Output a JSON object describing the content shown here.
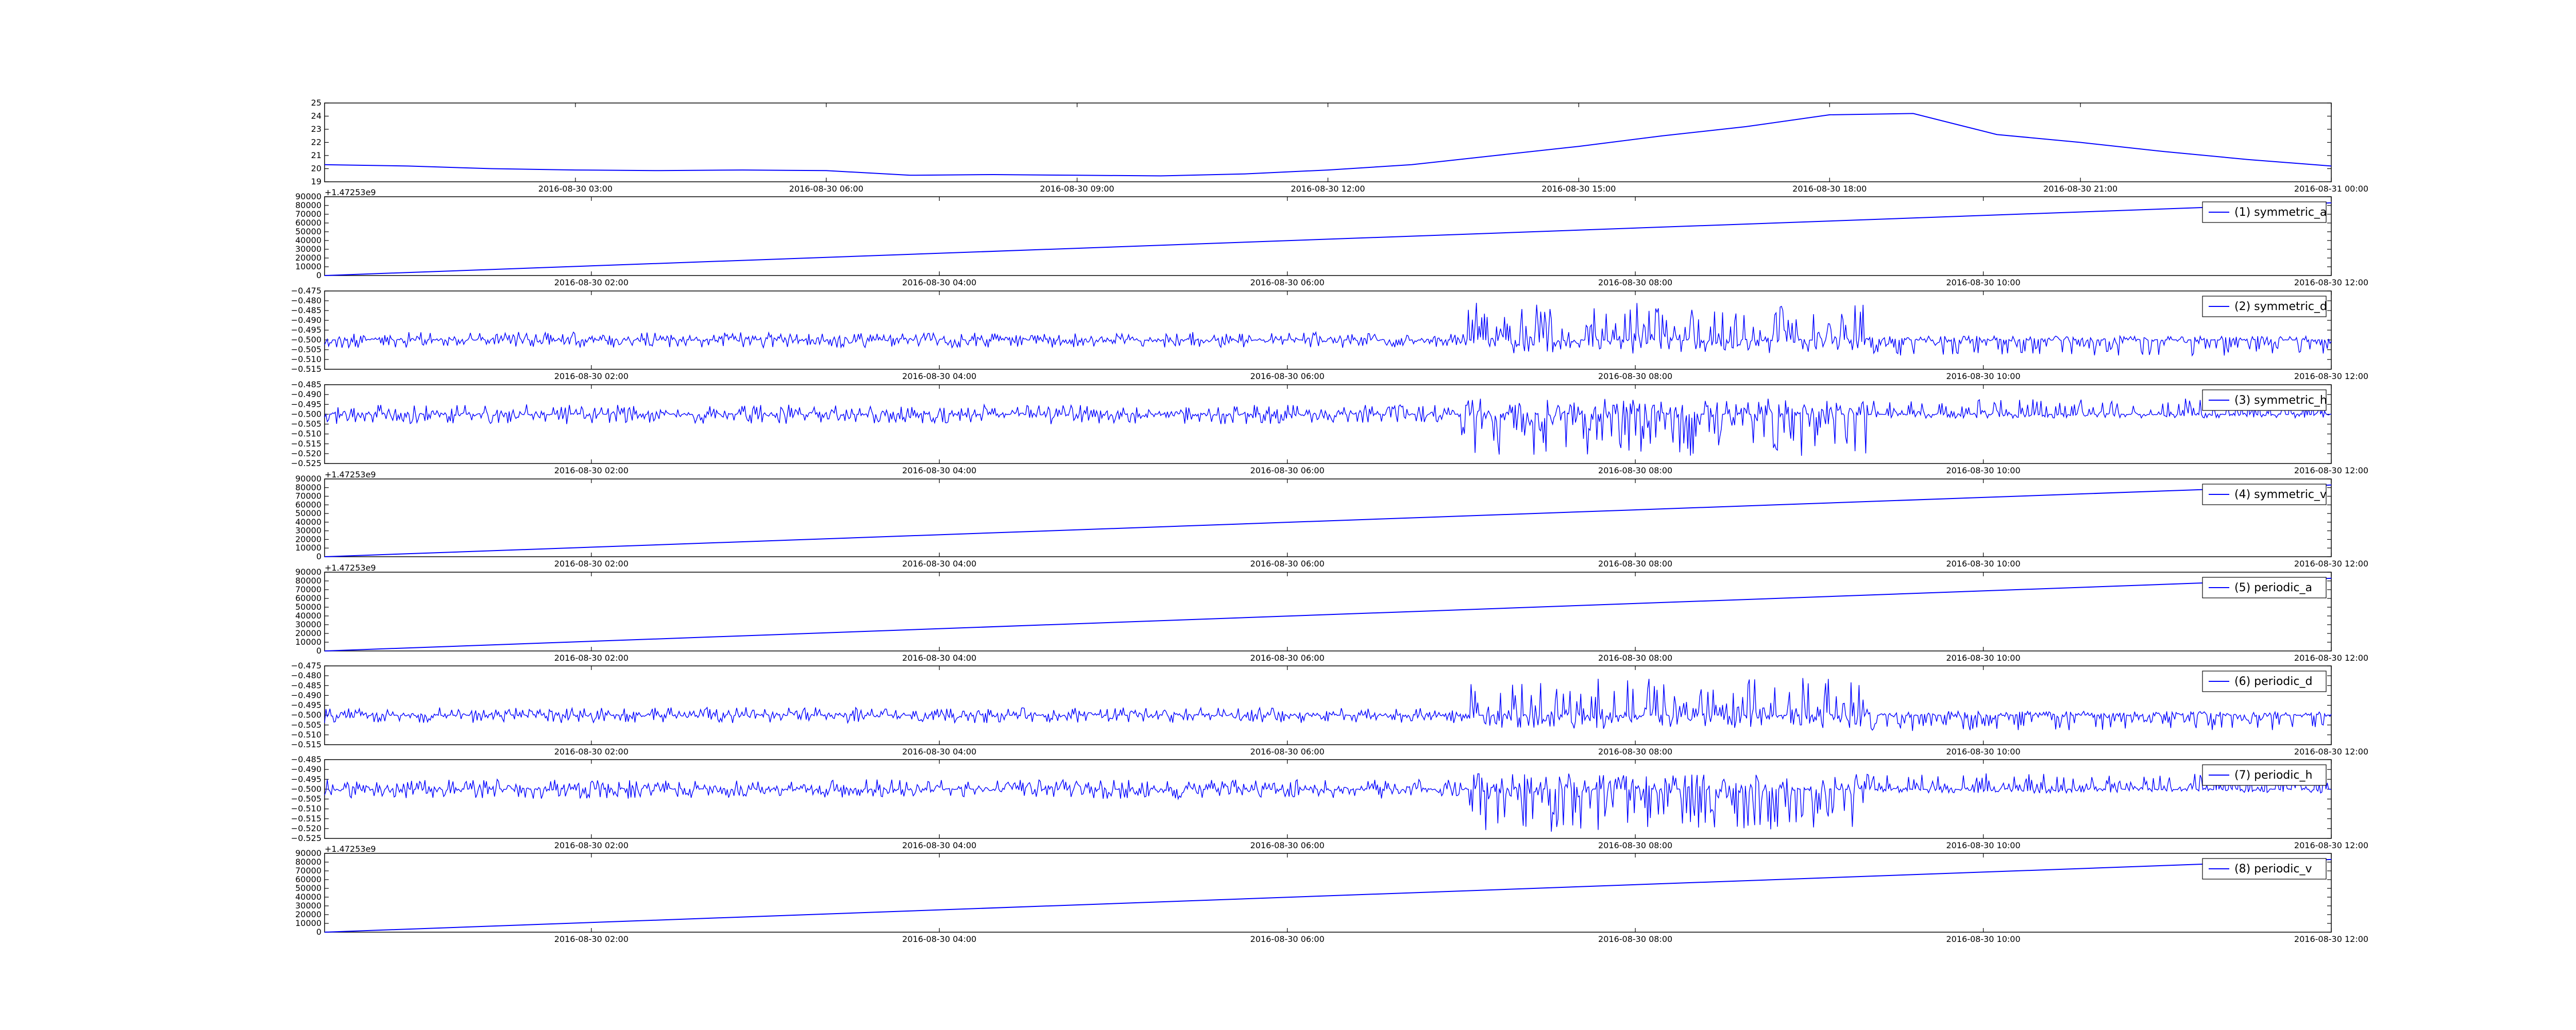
{
  "chart_data": [
    {
      "type": "line",
      "title": "",
      "xlabel": "",
      "ylabel": "",
      "x_tick_labels": [
        "2016-08-30 03:00",
        "2016-08-30 06:00",
        "2016-08-30 09:00",
        "2016-08-30 12:00",
        "2016-08-30 15:00",
        "2016-08-30 18:00",
        "2016-08-30 21:00",
        "2016-08-31 00:00"
      ],
      "x_range": [
        "2016-08-30 00:00",
        "2016-08-31 00:00"
      ],
      "ylim": [
        19,
        25
      ],
      "y_ticks": [
        "19",
        "20",
        "21",
        "22",
        "23",
        "24",
        "25"
      ],
      "grid": false,
      "series": [
        {
          "color": "#0000ff",
          "x": [
            "2016-08-30 00:00",
            "2016-08-30 01:00",
            "2016-08-30 02:00",
            "2016-08-30 03:00",
            "2016-08-30 04:00",
            "2016-08-30 05:00",
            "2016-08-30 06:00",
            "2016-08-30 07:00",
            "2016-08-30 08:00",
            "2016-08-30 09:00",
            "2016-08-30 10:00",
            "2016-08-30 11:00",
            "2016-08-30 12:00",
            "2016-08-30 13:00",
            "2016-08-30 14:00",
            "2016-08-30 15:00",
            "2016-08-30 16:00",
            "2016-08-30 17:00",
            "2016-08-30 18:00",
            "2016-08-30 19:00",
            "2016-08-30 20:00",
            "2016-08-30 21:00",
            "2016-08-30 22:00",
            "2016-08-30 23:00",
            "2016-08-31 00:00"
          ],
          "values": [
            20.3,
            20.2,
            20.0,
            19.9,
            19.85,
            19.9,
            19.85,
            19.5,
            19.55,
            19.5,
            19.45,
            19.6,
            19.9,
            20.3,
            21.0,
            21.7,
            22.5,
            23.2,
            24.1,
            24.2,
            22.6,
            22.0,
            21.3,
            20.7,
            20.2
          ]
        }
      ]
    },
    {
      "type": "line",
      "title": "",
      "xlabel": "",
      "ylabel": "",
      "offset_text": "+1.47253e9",
      "x_tick_labels": [
        "2016-08-30 02:00",
        "2016-08-30 04:00",
        "2016-08-30 06:00",
        "2016-08-30 08:00",
        "2016-08-30 10:00",
        "2016-08-30 12:00"
      ],
      "x_range": [
        "2016-08-30 00:28",
        "2016-08-30 12:00"
      ],
      "ylim": [
        0,
        90000
      ],
      "y_ticks": [
        "0",
        "10000",
        "20000",
        "30000",
        "40000",
        "50000",
        "60000",
        "70000",
        "80000",
        "90000"
      ],
      "legend": "top-right",
      "grid": false,
      "series": [
        {
          "name": "(1) symmetric_a",
          "color": "#0000ff",
          "x": [
            "2016-08-30 00:28",
            "2016-08-30 12:00"
          ],
          "values": [
            0,
            83000
          ]
        }
      ]
    },
    {
      "type": "line",
      "title": "",
      "xlabel": "",
      "ylabel": "",
      "x_tick_labels": [
        "2016-08-30 02:00",
        "2016-08-30 04:00",
        "2016-08-30 06:00",
        "2016-08-30 08:00",
        "2016-08-30 10:00",
        "2016-08-30 12:00"
      ],
      "x_range": [
        "2016-08-30 00:28",
        "2016-08-30 12:00"
      ],
      "ylim": [
        -0.515,
        -0.475
      ],
      "y_ticks": [
        "−0.515",
        "−0.510",
        "−0.505",
        "−0.500",
        "−0.495",
        "−0.490",
        "−0.485",
        "−0.480",
        "−0.475"
      ],
      "legend": "top-right",
      "grid": false,
      "noise_profile": [
        {
          "from": "2016-08-30 00:28",
          "to": "2016-08-30 07:00",
          "up": 0.004,
          "down": 0.004
        },
        {
          "from": "2016-08-30 07:00",
          "to": "2016-08-30 09:20",
          "up": 0.019,
          "down": 0.007
        },
        {
          "from": "2016-08-30 09:20",
          "to": "2016-08-30 12:00",
          "up": 0.002,
          "down": 0.008
        }
      ],
      "series": [
        {
          "name": "(2) symmetric_d",
          "color": "#0000ff",
          "baseline": -0.5
        }
      ]
    },
    {
      "type": "line",
      "title": "",
      "xlabel": "",
      "ylabel": "",
      "x_tick_labels": [
        "2016-08-30 02:00",
        "2016-08-30 04:00",
        "2016-08-30 06:00",
        "2016-08-30 08:00",
        "2016-08-30 10:00",
        "2016-08-30 12:00"
      ],
      "x_range": [
        "2016-08-30 00:28",
        "2016-08-30 12:00"
      ],
      "ylim": [
        -0.525,
        -0.485
      ],
      "y_ticks": [
        "−0.525",
        "−0.520",
        "−0.515",
        "−0.510",
        "−0.505",
        "−0.500",
        "−0.495",
        "−0.490",
        "−0.485"
      ],
      "legend": "top-right",
      "grid": false,
      "noise_profile": [
        {
          "from": "2016-08-30 00:28",
          "to": "2016-08-30 07:00",
          "up": 0.005,
          "down": 0.005
        },
        {
          "from": "2016-08-30 07:00",
          "to": "2016-08-30 09:20",
          "up": 0.008,
          "down": 0.022
        },
        {
          "from": "2016-08-30 09:20",
          "to": "2016-08-30 12:00",
          "up": 0.008,
          "down": 0.002
        }
      ],
      "series": [
        {
          "name": "(3) symmetric_h",
          "color": "#0000ff",
          "baseline": -0.5
        }
      ]
    },
    {
      "type": "line",
      "title": "",
      "xlabel": "",
      "ylabel": "",
      "offset_text": "+1.47253e9",
      "x_tick_labels": [
        "2016-08-30 02:00",
        "2016-08-30 04:00",
        "2016-08-30 06:00",
        "2016-08-30 08:00",
        "2016-08-30 10:00",
        "2016-08-30 12:00"
      ],
      "x_range": [
        "2016-08-30 00:28",
        "2016-08-30 12:00"
      ],
      "ylim": [
        0,
        90000
      ],
      "y_ticks": [
        "0",
        "10000",
        "20000",
        "30000",
        "40000",
        "50000",
        "60000",
        "70000",
        "80000",
        "90000"
      ],
      "legend": "top-right",
      "grid": false,
      "series": [
        {
          "name": "(4) symmetric_v",
          "color": "#0000ff",
          "x": [
            "2016-08-30 00:28",
            "2016-08-30 12:00"
          ],
          "values": [
            0,
            83000
          ]
        }
      ]
    },
    {
      "type": "line",
      "title": "",
      "xlabel": "",
      "ylabel": "",
      "offset_text": "+1.47253e9",
      "x_tick_labels": [
        "2016-08-30 02:00",
        "2016-08-30 04:00",
        "2016-08-30 06:00",
        "2016-08-30 08:00",
        "2016-08-30 10:00",
        "2016-08-30 12:00"
      ],
      "x_range": [
        "2016-08-30 00:28",
        "2016-08-30 12:00"
      ],
      "ylim": [
        0,
        90000
      ],
      "y_ticks": [
        "0",
        "10000",
        "20000",
        "30000",
        "40000",
        "50000",
        "60000",
        "70000",
        "80000",
        "90000"
      ],
      "legend": "top-right",
      "grid": false,
      "series": [
        {
          "name": "(5) periodic_a",
          "color": "#0000ff",
          "x": [
            "2016-08-30 00:28",
            "2016-08-30 12:00"
          ],
          "values": [
            0,
            83000
          ]
        }
      ]
    },
    {
      "type": "line",
      "title": "",
      "xlabel": "",
      "ylabel": "",
      "x_tick_labels": [
        "2016-08-30 02:00",
        "2016-08-30 04:00",
        "2016-08-30 06:00",
        "2016-08-30 08:00",
        "2016-08-30 10:00",
        "2016-08-30 12:00"
      ],
      "x_range": [
        "2016-08-30 00:28",
        "2016-08-30 12:00"
      ],
      "ylim": [
        -0.515,
        -0.475
      ],
      "y_ticks": [
        "−0.515",
        "−0.510",
        "−0.505",
        "−0.500",
        "−0.495",
        "−0.490",
        "−0.485",
        "−0.480",
        "−0.475"
      ],
      "legend": "top-right",
      "grid": false,
      "noise_profile": [
        {
          "from": "2016-08-30 00:28",
          "to": "2016-08-30 07:00",
          "up": 0.004,
          "down": 0.004
        },
        {
          "from": "2016-08-30 07:00",
          "to": "2016-08-30 09:20",
          "up": 0.019,
          "down": 0.007
        },
        {
          "from": "2016-08-30 09:20",
          "to": "2016-08-30 12:00",
          "up": 0.002,
          "down": 0.008
        }
      ],
      "series": [
        {
          "name": "(6) periodic_d",
          "color": "#0000ff",
          "baseline": -0.5
        }
      ]
    },
    {
      "type": "line",
      "title": "",
      "xlabel": "",
      "ylabel": "",
      "x_tick_labels": [
        "2016-08-30 02:00",
        "2016-08-30 04:00",
        "2016-08-30 06:00",
        "2016-08-30 08:00",
        "2016-08-30 10:00",
        "2016-08-30 12:00"
      ],
      "x_range": [
        "2016-08-30 00:28",
        "2016-08-30 12:00"
      ],
      "ylim": [
        -0.525,
        -0.485
      ],
      "y_ticks": [
        "−0.525",
        "−0.520",
        "−0.515",
        "−0.510",
        "−0.505",
        "−0.500",
        "−0.495",
        "−0.490",
        "−0.485"
      ],
      "legend": "top-right",
      "grid": false,
      "noise_profile": [
        {
          "from": "2016-08-30 00:28",
          "to": "2016-08-30 07:00",
          "up": 0.005,
          "down": 0.005
        },
        {
          "from": "2016-08-30 07:00",
          "to": "2016-08-30 09:20",
          "up": 0.008,
          "down": 0.022
        },
        {
          "from": "2016-08-30 09:20",
          "to": "2016-08-30 12:00",
          "up": 0.008,
          "down": 0.002
        }
      ],
      "series": [
        {
          "name": "(7) periodic_h",
          "color": "#0000ff",
          "baseline": -0.5
        }
      ]
    },
    {
      "type": "line",
      "title": "",
      "xlabel": "",
      "ylabel": "",
      "offset_text": "+1.47253e9",
      "x_tick_labels": [
        "2016-08-30 02:00",
        "2016-08-30 04:00",
        "2016-08-30 06:00",
        "2016-08-30 08:00",
        "2016-08-30 10:00",
        "2016-08-30 12:00"
      ],
      "x_range": [
        "2016-08-30 00:28",
        "2016-08-30 12:00"
      ],
      "ylim": [
        0,
        90000
      ],
      "y_ticks": [
        "0",
        "10000",
        "20000",
        "30000",
        "40000",
        "50000",
        "60000",
        "70000",
        "80000",
        "90000"
      ],
      "legend": "top-right",
      "grid": false,
      "series": [
        {
          "name": "(8) periodic_v",
          "color": "#0000ff",
          "x": [
            "2016-08-30 00:28",
            "2016-08-30 12:00"
          ],
          "values": [
            0,
            83000
          ]
        }
      ]
    }
  ]
}
